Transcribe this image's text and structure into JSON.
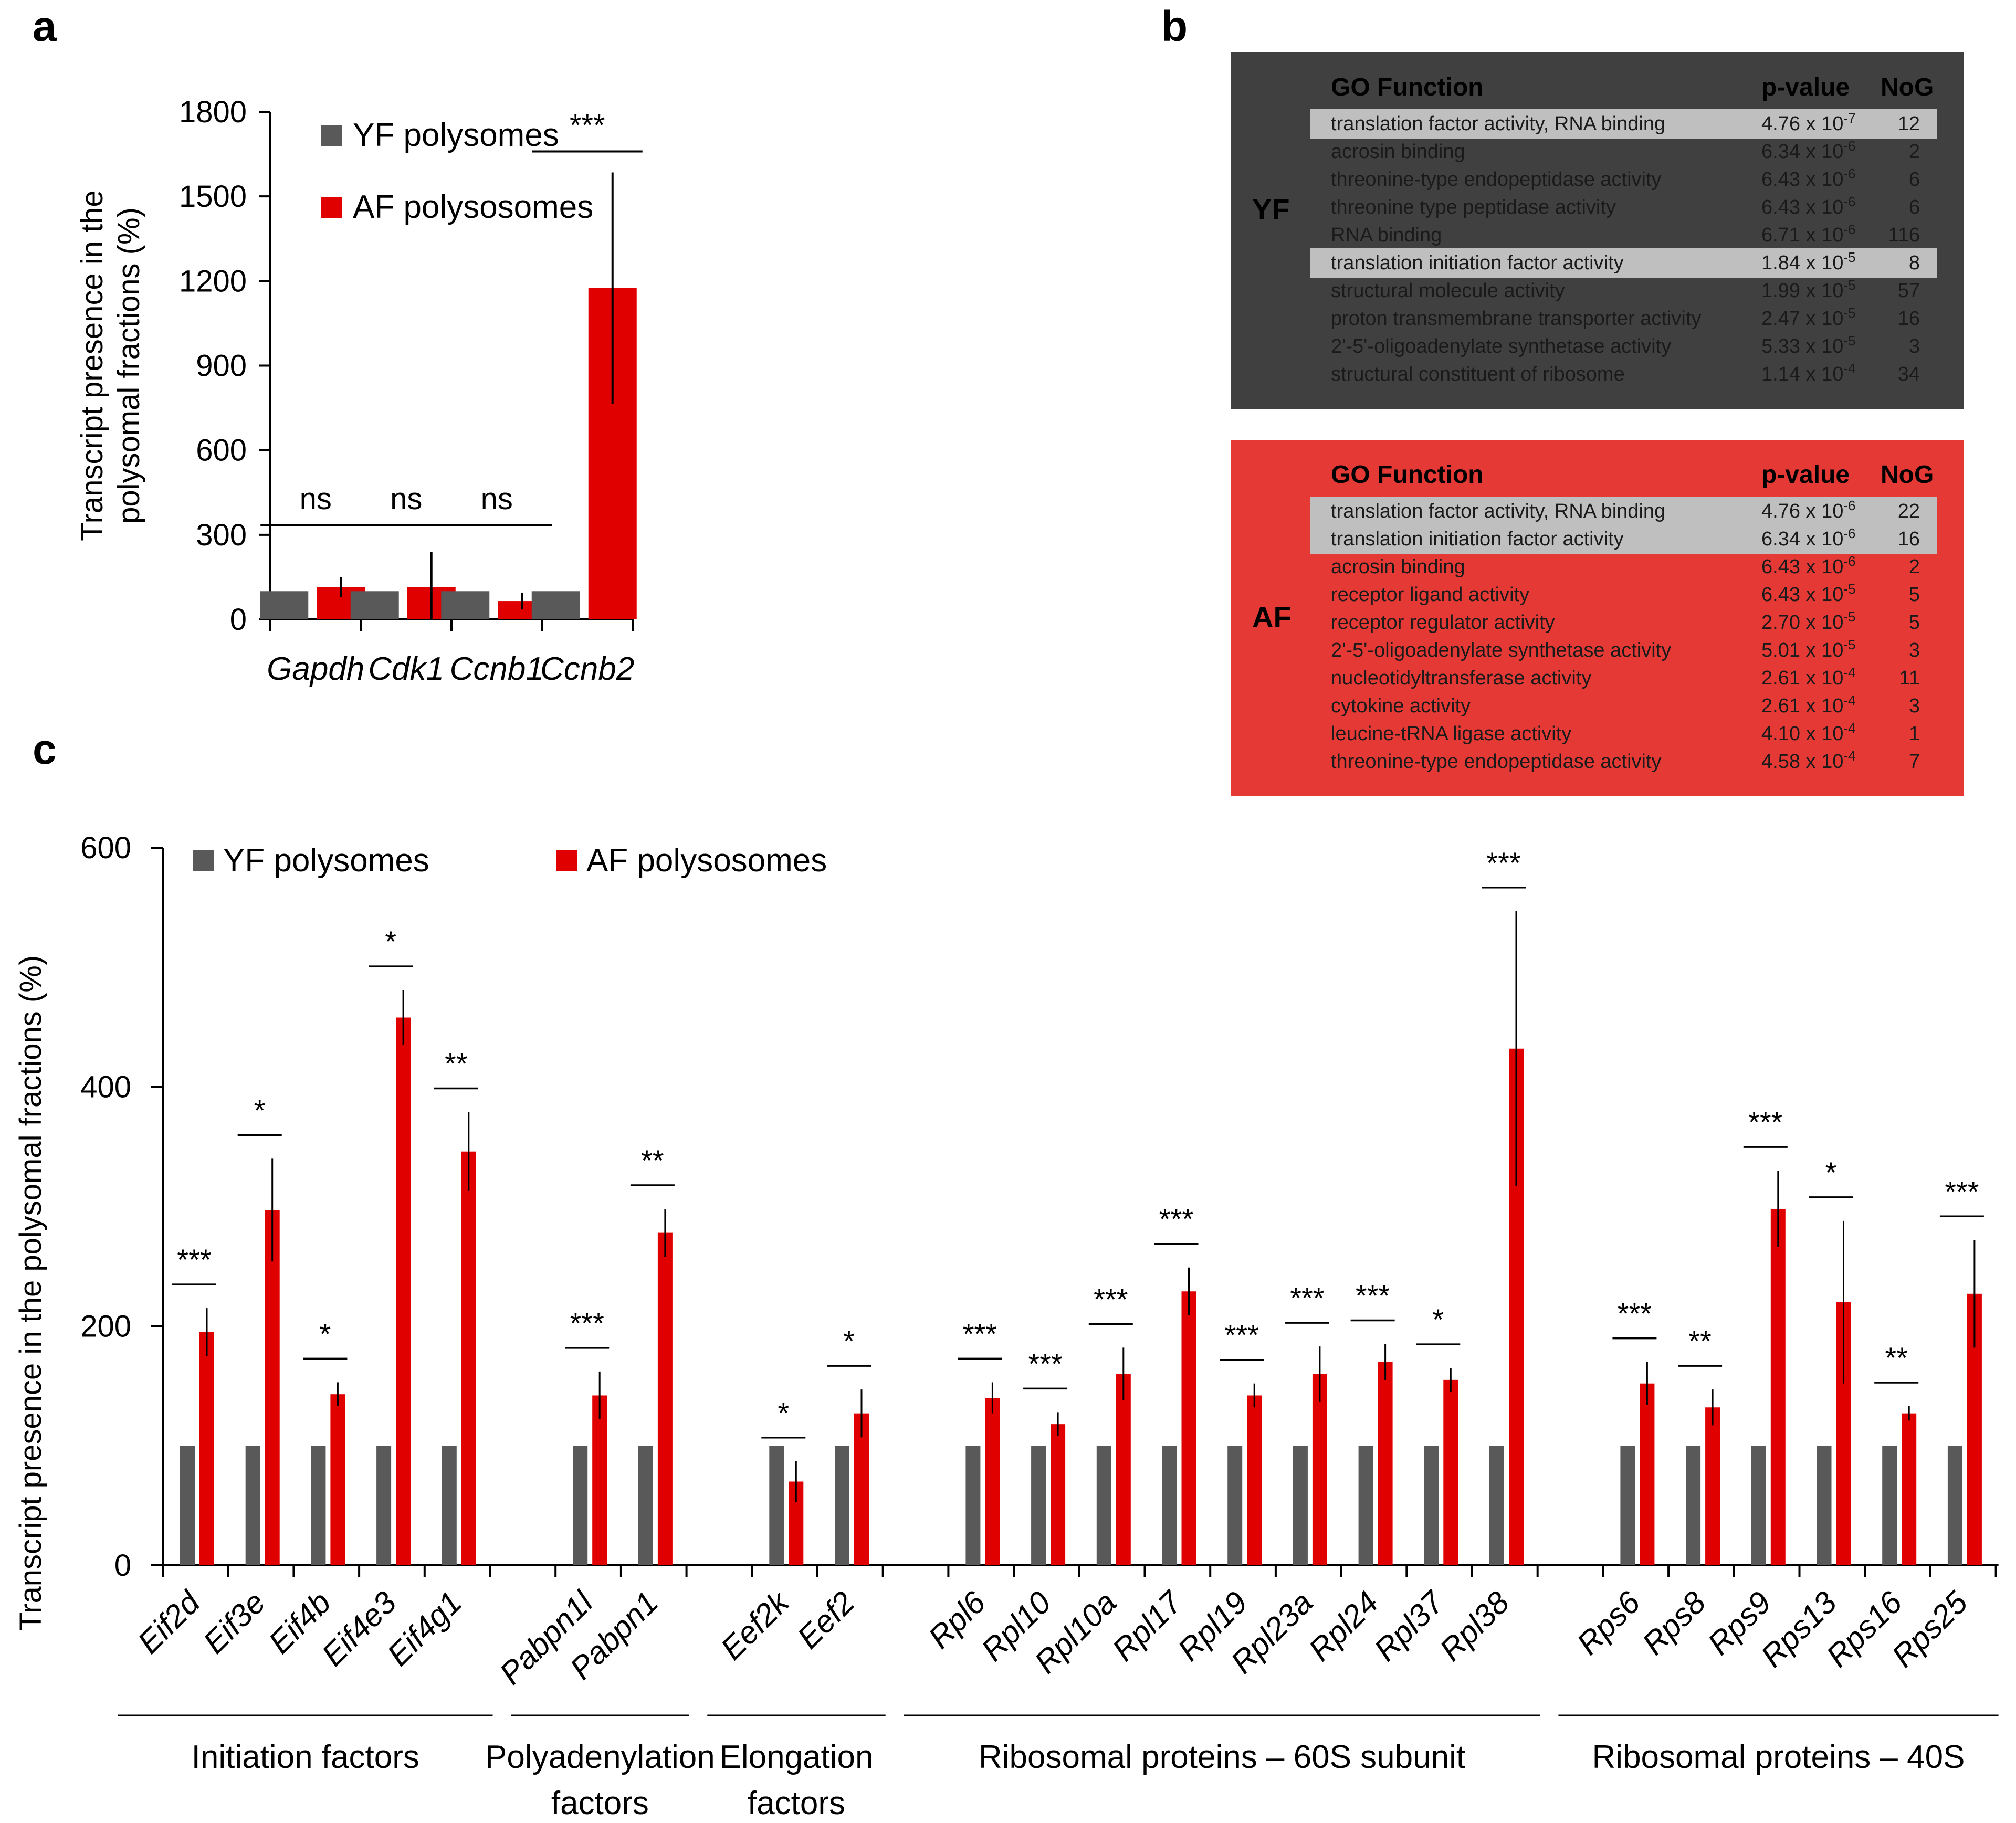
{
  "colors": {
    "yf": "#595959",
    "af": "#e00000",
    "yf_box_bg": "#404040",
    "af_box_bg": "#e53935",
    "highlight": "#bfbfbf"
  },
  "panel_labels": {
    "a": "a",
    "b": "b",
    "c": "c"
  },
  "chart_data": [
    {
      "id": "a",
      "type": "bar",
      "title": "",
      "ylabel_lines": [
        "Transcript presence in the",
        "polysomal fractions (%)"
      ],
      "ylim": [
        0,
        1800
      ],
      "yticks": [
        0,
        300,
        600,
        900,
        1200,
        1500,
        1800
      ],
      "legend": {
        "position": "top-left",
        "yf": "YF polysomes",
        "af": "AF polysosomes"
      },
      "categories": [
        "Gapdh",
        "Cdk1",
        "Ccnb1",
        "Ccnb2"
      ],
      "series": [
        {
          "name": "YF polysomes",
          "values": [
            100,
            100,
            100,
            100
          ]
        },
        {
          "name": "AF polysosomes",
          "values": [
            115,
            115,
            65,
            1175
          ],
          "errors": [
            35,
            125,
            30,
            410
          ]
        }
      ],
      "significance": [
        "ns",
        "ns",
        "ns",
        "***"
      ]
    },
    {
      "id": "c",
      "type": "bar",
      "title": "",
      "ylabel": "Transcript presence in the polysomal fractions (%)",
      "ylim": [
        0,
        600
      ],
      "yticks": [
        0,
        200,
        400,
        600
      ],
      "legend": {
        "position": "top-left",
        "yf": "YF polysomes",
        "af": "AF polysosomes"
      },
      "groups": [
        {
          "label_lines": [
            "Initiation factors"
          ],
          "categories": [
            "Eif2d",
            "Eif3e",
            "Eif4b",
            "Eif4e3",
            "Eif4g1"
          ]
        },
        {
          "label_lines": [
            "Polyadenylation",
            "factors"
          ],
          "categories": [
            "Pabpn1l",
            "Pabpn1"
          ]
        },
        {
          "label_lines": [
            "Elongation",
            "factors"
          ],
          "categories": [
            "Eef2k",
            "Eef2"
          ]
        },
        {
          "label_lines": [
            "Ribosomal proteins – 60S subunit"
          ],
          "categories": [
            "Rpl6",
            "Rpl10",
            "Rpl10a",
            "Rpl17",
            "Rpl19",
            "Rpl23a",
            "Rpl24",
            "Rpl37",
            "Rpl38"
          ]
        },
        {
          "label_lines": [
            "Ribosomal proteins – 40S"
          ],
          "categories": [
            "Rps6",
            "Rps8",
            "Rps9",
            "Rps13",
            "Rps16",
            "Rps25"
          ]
        }
      ],
      "series": [
        {
          "name": "YF polysomes",
          "values": [
            100,
            100,
            100,
            100,
            100,
            100,
            100,
            100,
            100,
            100,
            100,
            100,
            100,
            100,
            100,
            100,
            100,
            100,
            100,
            100,
            100,
            100,
            100,
            100
          ]
        },
        {
          "name": "AF polysosomes",
          "values": [
            195,
            297,
            143,
            458,
            346,
            142,
            278,
            70,
            127,
            140,
            118,
            160,
            229,
            142,
            160,
            170,
            155,
            432,
            152,
            132,
            298,
            220,
            127,
            227
          ],
          "errors": [
            20,
            43,
            10,
            23,
            33,
            20,
            20,
            17,
            20,
            13,
            10,
            22,
            20,
            10,
            23,
            15,
            10,
            115,
            18,
            15,
            32,
            68,
            6,
            45
          ]
        }
      ],
      "significance": [
        "***",
        "*",
        "*",
        "*",
        "**",
        "***",
        "**",
        "*",
        "*",
        "***",
        "***",
        "***",
        "***",
        "***",
        "***",
        "***",
        "*",
        "***",
        "***",
        "**",
        "***",
        "*",
        "**",
        "***"
      ]
    }
  ],
  "go_tables": [
    {
      "id": "YF",
      "label": "YF",
      "headers": {
        "function": "GO Function",
        "pvalue": "p-value",
        "nog": "NoG"
      },
      "rows": [
        {
          "function": "translation factor activity, RNA binding",
          "pmant": "4.76",
          "pexp": "-7",
          "nog": "12",
          "highlight": true
        },
        {
          "function": "acrosin binding",
          "pmant": "6.34",
          "pexp": "-6",
          "nog": "2",
          "highlight": false
        },
        {
          "function": "threonine-type endopeptidase activity",
          "pmant": "6.43",
          "pexp": "-6",
          "nog": "6",
          "highlight": false
        },
        {
          "function": "threonine type peptidase activity",
          "pmant": "6.43",
          "pexp": "-6",
          "nog": "6",
          "highlight": false
        },
        {
          "function": "RNA binding",
          "pmant": "6.71",
          "pexp": "-6",
          "nog": "116",
          "highlight": false
        },
        {
          "function": "translation initiation factor activity",
          "pmant": "1.84",
          "pexp": "-5",
          "nog": "8",
          "highlight": true
        },
        {
          "function": "structural molecule activity",
          "pmant": "1.99",
          "pexp": "-5",
          "nog": "57",
          "highlight": false
        },
        {
          "function": "proton transmembrane transporter activity",
          "pmant": "2.47",
          "pexp": "-5",
          "nog": "16",
          "highlight": false
        },
        {
          "function": "2'-5'-oligoadenylate synthetase activity",
          "pmant": "5.33",
          "pexp": "-5",
          "nog": "3",
          "highlight": false
        },
        {
          "function": "structural constituent of ribosome",
          "pmant": "1.14",
          "pexp": "-4",
          "nog": "34",
          "highlight": false
        }
      ]
    },
    {
      "id": "AF",
      "label": "AF",
      "headers": {
        "function": "GO Function",
        "pvalue": "p-value",
        "nog": "NoG"
      },
      "rows": [
        {
          "function": "translation factor activity, RNA binding",
          "pmant": "4.76",
          "pexp": "-6",
          "nog": "22",
          "highlight": true
        },
        {
          "function": "translation initiation factor activity",
          "pmant": "6.34",
          "pexp": "-6",
          "nog": "16",
          "highlight": true
        },
        {
          "function": "acrosin binding",
          "pmant": "6.43",
          "pexp": "-6",
          "nog": "2",
          "highlight": false
        },
        {
          "function": "receptor ligand activity",
          "pmant": "6.43",
          "pexp": "-5",
          "nog": "5",
          "highlight": false
        },
        {
          "function": "receptor regulator activity",
          "pmant": "2.70",
          "pexp": "-5",
          "nog": "5",
          "highlight": false
        },
        {
          "function": "2'-5'-oligoadenylate synthetase activity",
          "pmant": "5.01",
          "pexp": "-5",
          "nog": "3",
          "highlight": false
        },
        {
          "function": "nucleotidyltransferase activity",
          "pmant": "2.61",
          "pexp": "-4",
          "nog": "11",
          "highlight": false
        },
        {
          "function": "cytokine activity",
          "pmant": "2.61",
          "pexp": "-4",
          "nog": "3",
          "highlight": false
        },
        {
          "function": "leucine-tRNA ligase activity",
          "pmant": "4.10",
          "pexp": "-4",
          "nog": "1",
          "highlight": false
        },
        {
          "function": "threonine-type endopeptidase activity",
          "pmant": "4.58",
          "pexp": "-4",
          "nog": "7",
          "highlight": false
        }
      ]
    }
  ]
}
